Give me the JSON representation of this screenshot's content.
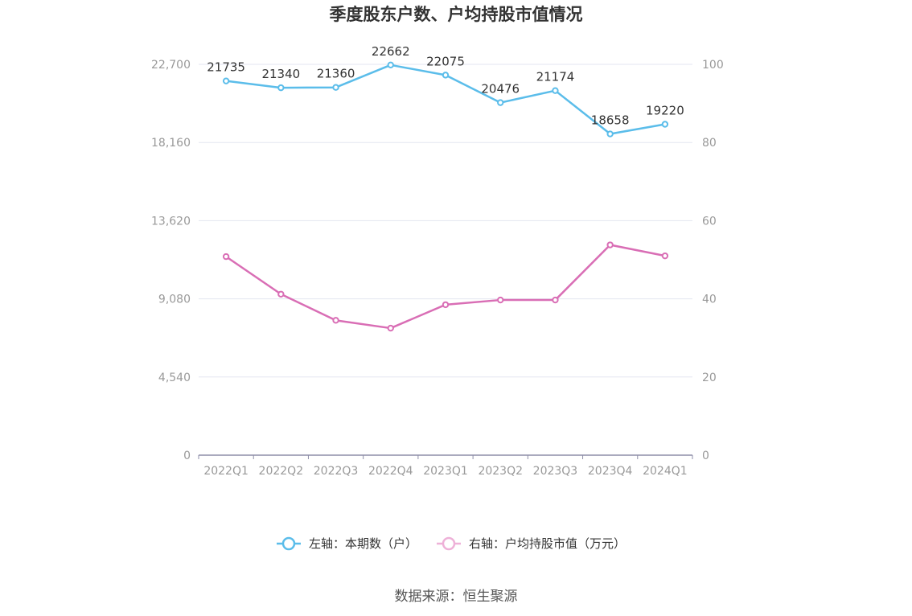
{
  "chart_data": {
    "type": "line",
    "title": "季度股东户数、户均持股市值情况",
    "categories": [
      "2022Q1",
      "2022Q2",
      "2022Q3",
      "2022Q4",
      "2023Q1",
      "2023Q2",
      "2023Q3",
      "2023Q4",
      "2024Q1"
    ],
    "left_axis": {
      "ticks": [
        "0",
        "4,540",
        "9,080",
        "13,620",
        "18,160",
        "22,700"
      ],
      "ylim": [
        0,
        22700
      ]
    },
    "right_axis": {
      "ticks": [
        "0",
        "20",
        "40",
        "60",
        "80",
        "100"
      ],
      "ylim": [
        0,
        100
      ]
    },
    "series": [
      {
        "name": "左轴：本期数（户）",
        "axis": "left",
        "color": "#5bbdea",
        "values": [
          21735,
          21340,
          21360,
          22662,
          22075,
          20476,
          21174,
          18658,
          19220
        ],
        "labels": [
          "21735",
          "21340",
          "21360",
          "22662",
          "22075",
          "20476",
          "21174",
          "18658",
          "19220"
        ]
      },
      {
        "name": "右轴：户均持股市值（万元）",
        "axis": "right",
        "color": "#d96eb5",
        "legend_color": "#eeb1d8",
        "values": [
          50.8,
          41.2,
          34.5,
          32.5,
          38.5,
          39.7,
          39.7,
          53.8,
          51.0
        ]
      }
    ],
    "grid": true,
    "legend": "bottom",
    "source": "数据来源：恒生聚源"
  }
}
